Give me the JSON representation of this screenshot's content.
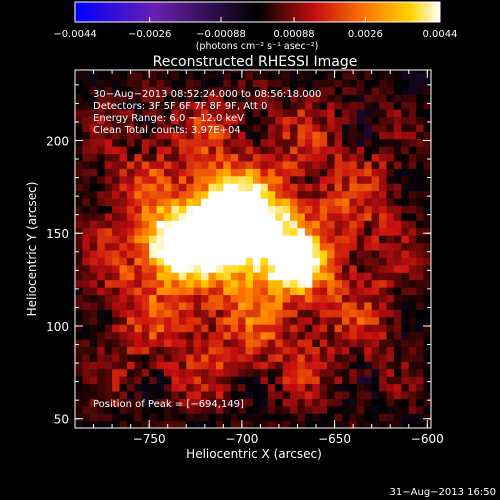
{
  "chart_data": {
    "type": "heatmap",
    "title": "Reconstructed RHESSI Image",
    "xlabel": "Heliocentric X (arcsec)",
    "ylabel": "Heliocentric Y (arcsec)",
    "xlim": [
      -790,
      -598
    ],
    "ylim": [
      45,
      238
    ],
    "x_ticks": [
      -750,
      -700,
      -650,
      -600
    ],
    "x_tick_labels": [
      "−750",
      "−700",
      "−650",
      "−600"
    ],
    "y_ticks": [
      50,
      100,
      150,
      200
    ],
    "y_tick_labels": [
      "50",
      "100",
      "150",
      "200"
    ],
    "info_lines": [
      "30−Aug−2013 08:52:24.000 to 08:56:18.000",
      "Detectors: 3F 5F 6F 7F 8F 9F, Att 0",
      "Energy Range: 6.0 − 12.0 keV",
      "Clean     Total counts: 3.97E+04"
    ],
    "peak_label": "Position of Peak = [−694,149]",
    "peak_position": [
      -694,
      149
    ],
    "sources": [
      {
        "x": -697,
        "y": 149,
        "amplitude": 0.0044
      },
      {
        "x": -670,
        "y": 133,
        "amplitude": 0.004
      },
      {
        "x": -738,
        "y": 143,
        "amplitude": 0.0036
      },
      {
        "x": -720,
        "y": 152,
        "amplitude": 0.003
      },
      {
        "x": -708,
        "y": 165,
        "amplitude": 0.0026
      }
    ],
    "colorbar": {
      "min": -0.0044,
      "max": 0.0044,
      "ticks": [
        -0.0044,
        -0.0026,
        -0.00088,
        0.00088,
        0.0026,
        0.0044
      ],
      "tick_labels": [
        "−0.0044",
        "−0.0026",
        "−0.00088",
        "0.00088",
        "0.0026",
        "0.0044"
      ],
      "units_label": "(photons cm⁻² s⁻¹ asec⁻²)",
      "colormap": "blue-purple-black-red-orange-yellow-white",
      "colors": [
        "#0000ff",
        "#6a1fb0",
        "#000000",
        "#c81010",
        "#ff7a00",
        "#ffd400",
        "#ffffff"
      ]
    },
    "grid": false,
    "legend": "none"
  },
  "footer": {
    "timestamp": "31−Aug−2013 16:50"
  }
}
